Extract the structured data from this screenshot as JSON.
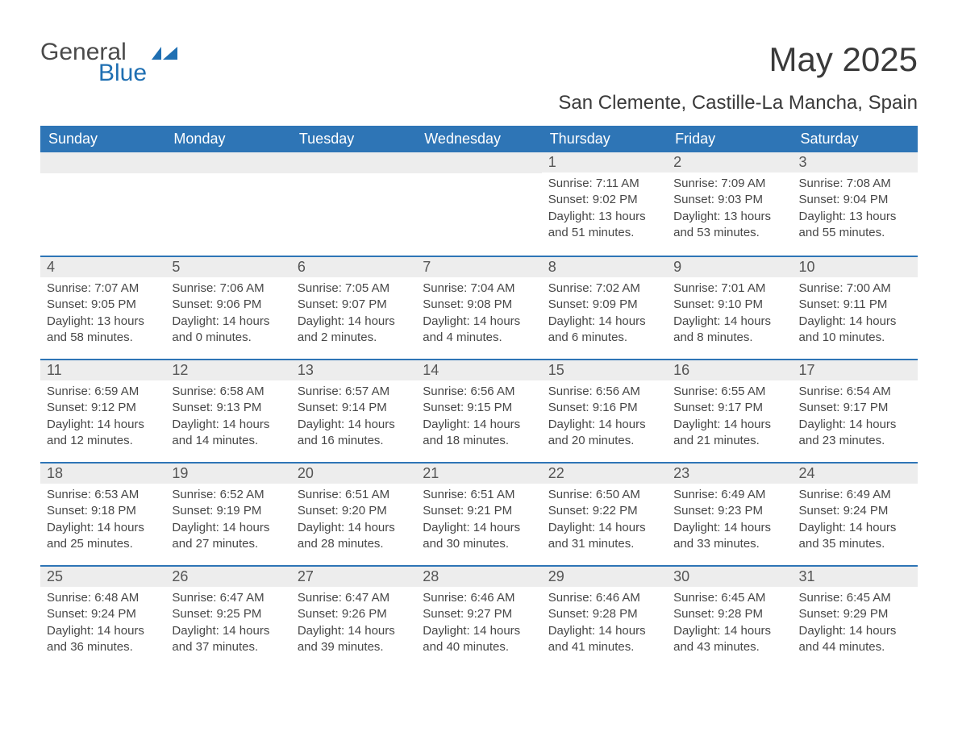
{
  "logo": {
    "text1": "General",
    "text2": "Blue",
    "icon_color": "#1f6fb2"
  },
  "title": "May 2025",
  "location": "San Clemente, Castille-La Mancha, Spain",
  "colors": {
    "header_bg": "#2e75b6",
    "header_text": "#ffffff",
    "daynum_bg": "#ededed",
    "rule": "#2e75b6",
    "body_text": "#474747",
    "page_bg": "#ffffff"
  },
  "typography": {
    "title_fontsize": 42,
    "location_fontsize": 24,
    "weekday_fontsize": 18,
    "daynum_fontsize": 18,
    "body_fontsize": 15
  },
  "weekdays": [
    "Sunday",
    "Monday",
    "Tuesday",
    "Wednesday",
    "Thursday",
    "Friday",
    "Saturday"
  ],
  "grid": [
    [
      null,
      null,
      null,
      null,
      {
        "n": "1",
        "sunrise": "7:11 AM",
        "sunset": "9:02 PM",
        "dl_h": 13,
        "dl_m": 51
      },
      {
        "n": "2",
        "sunrise": "7:09 AM",
        "sunset": "9:03 PM",
        "dl_h": 13,
        "dl_m": 53
      },
      {
        "n": "3",
        "sunrise": "7:08 AM",
        "sunset": "9:04 PM",
        "dl_h": 13,
        "dl_m": 55
      }
    ],
    [
      {
        "n": "4",
        "sunrise": "7:07 AM",
        "sunset": "9:05 PM",
        "dl_h": 13,
        "dl_m": 58
      },
      {
        "n": "5",
        "sunrise": "7:06 AM",
        "sunset": "9:06 PM",
        "dl_h": 14,
        "dl_m": 0
      },
      {
        "n": "6",
        "sunrise": "7:05 AM",
        "sunset": "9:07 PM",
        "dl_h": 14,
        "dl_m": 2
      },
      {
        "n": "7",
        "sunrise": "7:04 AM",
        "sunset": "9:08 PM",
        "dl_h": 14,
        "dl_m": 4
      },
      {
        "n": "8",
        "sunrise": "7:02 AM",
        "sunset": "9:09 PM",
        "dl_h": 14,
        "dl_m": 6
      },
      {
        "n": "9",
        "sunrise": "7:01 AM",
        "sunset": "9:10 PM",
        "dl_h": 14,
        "dl_m": 8
      },
      {
        "n": "10",
        "sunrise": "7:00 AM",
        "sunset": "9:11 PM",
        "dl_h": 14,
        "dl_m": 10
      }
    ],
    [
      {
        "n": "11",
        "sunrise": "6:59 AM",
        "sunset": "9:12 PM",
        "dl_h": 14,
        "dl_m": 12
      },
      {
        "n": "12",
        "sunrise": "6:58 AM",
        "sunset": "9:13 PM",
        "dl_h": 14,
        "dl_m": 14
      },
      {
        "n": "13",
        "sunrise": "6:57 AM",
        "sunset": "9:14 PM",
        "dl_h": 14,
        "dl_m": 16
      },
      {
        "n": "14",
        "sunrise": "6:56 AM",
        "sunset": "9:15 PM",
        "dl_h": 14,
        "dl_m": 18
      },
      {
        "n": "15",
        "sunrise": "6:56 AM",
        "sunset": "9:16 PM",
        "dl_h": 14,
        "dl_m": 20
      },
      {
        "n": "16",
        "sunrise": "6:55 AM",
        "sunset": "9:17 PM",
        "dl_h": 14,
        "dl_m": 21
      },
      {
        "n": "17",
        "sunrise": "6:54 AM",
        "sunset": "9:17 PM",
        "dl_h": 14,
        "dl_m": 23
      }
    ],
    [
      {
        "n": "18",
        "sunrise": "6:53 AM",
        "sunset": "9:18 PM",
        "dl_h": 14,
        "dl_m": 25
      },
      {
        "n": "19",
        "sunrise": "6:52 AM",
        "sunset": "9:19 PM",
        "dl_h": 14,
        "dl_m": 27
      },
      {
        "n": "20",
        "sunrise": "6:51 AM",
        "sunset": "9:20 PM",
        "dl_h": 14,
        "dl_m": 28
      },
      {
        "n": "21",
        "sunrise": "6:51 AM",
        "sunset": "9:21 PM",
        "dl_h": 14,
        "dl_m": 30
      },
      {
        "n": "22",
        "sunrise": "6:50 AM",
        "sunset": "9:22 PM",
        "dl_h": 14,
        "dl_m": 31
      },
      {
        "n": "23",
        "sunrise": "6:49 AM",
        "sunset": "9:23 PM",
        "dl_h": 14,
        "dl_m": 33
      },
      {
        "n": "24",
        "sunrise": "6:49 AM",
        "sunset": "9:24 PM",
        "dl_h": 14,
        "dl_m": 35
      }
    ],
    [
      {
        "n": "25",
        "sunrise": "6:48 AM",
        "sunset": "9:24 PM",
        "dl_h": 14,
        "dl_m": 36
      },
      {
        "n": "26",
        "sunrise": "6:47 AM",
        "sunset": "9:25 PM",
        "dl_h": 14,
        "dl_m": 37
      },
      {
        "n": "27",
        "sunrise": "6:47 AM",
        "sunset": "9:26 PM",
        "dl_h": 14,
        "dl_m": 39
      },
      {
        "n": "28",
        "sunrise": "6:46 AM",
        "sunset": "9:27 PM",
        "dl_h": 14,
        "dl_m": 40
      },
      {
        "n": "29",
        "sunrise": "6:46 AM",
        "sunset": "9:28 PM",
        "dl_h": 14,
        "dl_m": 41
      },
      {
        "n": "30",
        "sunrise": "6:45 AM",
        "sunset": "9:28 PM",
        "dl_h": 14,
        "dl_m": 43
      },
      {
        "n": "31",
        "sunrise": "6:45 AM",
        "sunset": "9:29 PM",
        "dl_h": 14,
        "dl_m": 44
      }
    ]
  ],
  "labels": {
    "sunrise": "Sunrise:",
    "sunset": "Sunset:",
    "daylight": "Daylight:",
    "hours": "hours",
    "and": "and",
    "minutes": "minutes."
  }
}
